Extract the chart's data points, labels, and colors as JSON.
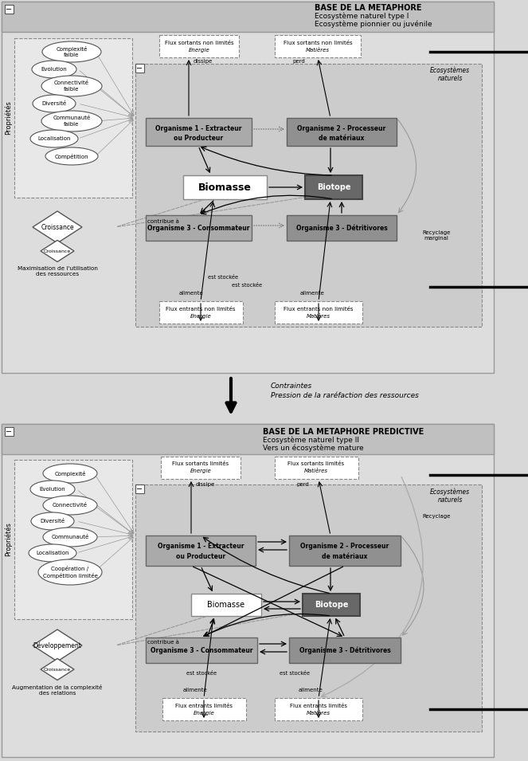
{
  "fig_width": 6.63,
  "fig_height": 9.55,
  "bg_color": "#d8d8d8",
  "panel_bg": "#c8c8c8",
  "inner_bg_top": "#cccccc",
  "box_light": "#a0a0a0",
  "box_dark": "#707070",
  "box_biotope": "#686868",
  "title1_line1": "BASE DE LA METAPHORE",
  "title1_line2": "Ecosystème naturel type I",
  "title1_line3": "Ecosystème pionnier ou juvénile",
  "title2_line1": "BASE DE LA METAPHORE PREDICTIVE",
  "title2_line2": "Ecosystème naturel type II",
  "title2_line3": "Vers un écosystème mature",
  "transition_text1": "Contraintes",
  "transition_text2": "Pression de la raréfaction des ressources"
}
